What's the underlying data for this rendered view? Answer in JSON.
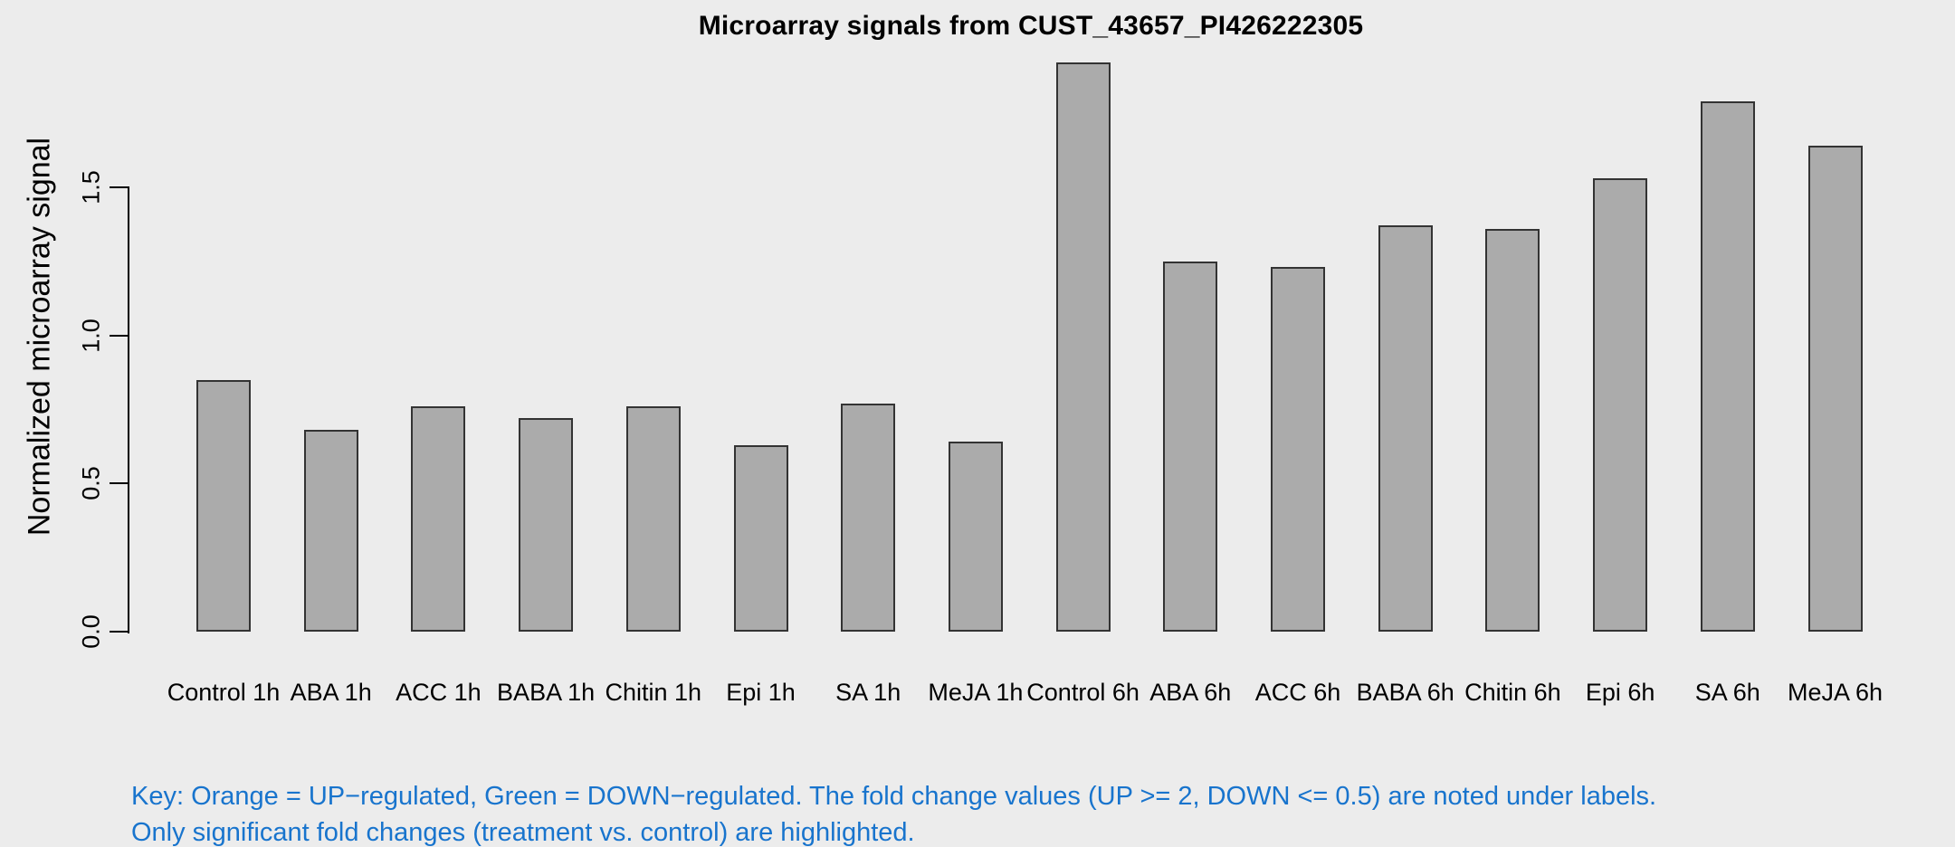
{
  "page": {
    "background": "#ECECEC"
  },
  "chart_data": {
    "type": "bar",
    "title": "Microarray signals from CUST_43657_PI426222305",
    "xlabel": "",
    "ylabel": "Normalized microarray signal",
    "categories": [
      "Control 1h",
      "ABA 1h",
      "ACC 1h",
      "BABA 1h",
      "Chitin 1h",
      "Epi 1h",
      "SA 1h",
      "MeJA 1h",
      "Control 6h",
      "ABA 6h",
      "ACC 6h",
      "BABA 6h",
      "Chitin 6h",
      "Epi 6h",
      "SA 6h",
      "MeJA 6h"
    ],
    "values": [
      0.85,
      0.68,
      0.76,
      0.72,
      0.76,
      0.63,
      0.77,
      0.64,
      1.92,
      1.25,
      1.23,
      1.37,
      1.36,
      1.53,
      1.79,
      1.64
    ],
    "yticks": [
      0.0,
      0.5,
      1.0,
      1.5
    ],
    "ytick_labels": [
      "0.0",
      "0.5",
      "1.0",
      "1.5"
    ],
    "ylim": [
      0,
      1.95
    ],
    "grid": false,
    "legend": "none",
    "bar_fill": "#ABABAB",
    "bar_border": "#333333",
    "axis_color": "#000000",
    "text_color": "#000000"
  },
  "footnote": {
    "line1": "Key: Orange = UP−regulated, Green = DOWN−regulated. The fold change values (UP >= 2, DOWN <= 0.5) are noted under labels.",
    "line2": "Only significant fold changes (treatment vs. control) are highlighted.",
    "color": "#1874CD"
  }
}
